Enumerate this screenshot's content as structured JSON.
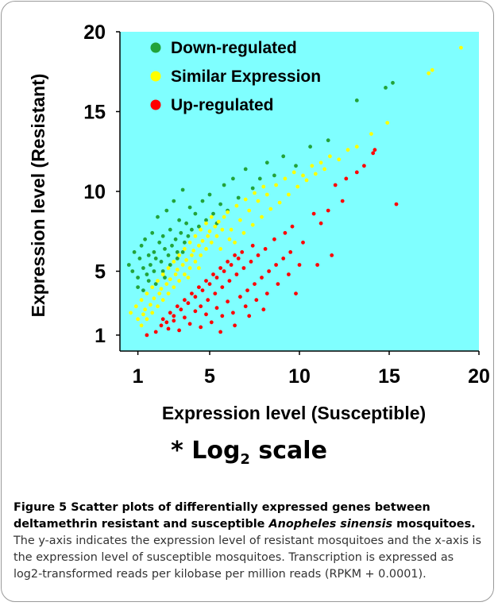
{
  "chart_data": {
    "type": "scatter",
    "title": "",
    "xlabel": "Expression level (Susceptible)",
    "ylabel": "Expression level (Resistant)",
    "xlim": [
      0,
      20
    ],
    "ylim": [
      0,
      20
    ],
    "x_ticks": [
      1,
      5,
      10,
      15,
      20
    ],
    "y_ticks": [
      1,
      5,
      10,
      15,
      20
    ],
    "background_color": "#7fffff",
    "grid": false,
    "legend_position": "top-left",
    "scale_note_prefix": "* Log",
    "scale_note_sub": "2",
    "scale_note_suffix": " scale",
    "series": [
      {
        "name": "Down-regulated",
        "color": "#22a33a",
        "points": [
          [
            0.5,
            5.4
          ],
          [
            0.7,
            5.0
          ],
          [
            0.8,
            6.2
          ],
          [
            1.0,
            4.6
          ],
          [
            1.1,
            5.8
          ],
          [
            1.2,
            6.6
          ],
          [
            1.3,
            5.2
          ],
          [
            1.4,
            7.0
          ],
          [
            1.5,
            4.8
          ],
          [
            1.6,
            6.0
          ],
          [
            1.7,
            5.4
          ],
          [
            1.8,
            7.4
          ],
          [
            1.9,
            6.2
          ],
          [
            2.0,
            5.8
          ],
          [
            2.1,
            8.4
          ],
          [
            2.2,
            6.8
          ],
          [
            2.3,
            5.6
          ],
          [
            2.4,
            7.2
          ],
          [
            2.5,
            6.4
          ],
          [
            2.6,
            8.8
          ],
          [
            2.7,
            6.0
          ],
          [
            2.8,
            7.6
          ],
          [
            2.9,
            6.6
          ],
          [
            3.0,
            9.4
          ],
          [
            3.1,
            7.0
          ],
          [
            3.2,
            6.2
          ],
          [
            3.3,
            8.2
          ],
          [
            3.4,
            7.4
          ],
          [
            3.5,
            10.1
          ],
          [
            3.6,
            6.8
          ],
          [
            3.7,
            8.0
          ],
          [
            3.8,
            7.2
          ],
          [
            3.9,
            9.0
          ],
          [
            4.0,
            7.6
          ],
          [
            4.2,
            8.6
          ],
          [
            4.4,
            7.8
          ],
          [
            4.6,
            9.4
          ],
          [
            4.8,
            8.2
          ],
          [
            5.0,
            9.8
          ],
          [
            5.2,
            8.6
          ],
          [
            5.4,
            8.0
          ],
          [
            5.6,
            9.2
          ],
          [
            5.8,
            10.4
          ],
          [
            6.0,
            8.8
          ],
          [
            6.3,
            10.8
          ],
          [
            6.6,
            9.6
          ],
          [
            7.0,
            11.4
          ],
          [
            7.4,
            10.2
          ],
          [
            7.8,
            10.8
          ],
          [
            8.2,
            11.8
          ],
          [
            8.6,
            11.0
          ],
          [
            9.1,
            12.2
          ],
          [
            9.8,
            11.6
          ],
          [
            10.6,
            12.8
          ],
          [
            11.6,
            13.2
          ],
          [
            13.2,
            15.7
          ],
          [
            14.8,
            16.5
          ],
          [
            15.2,
            16.8
          ],
          [
            1.3,
            3.8
          ],
          [
            1.6,
            4.4
          ],
          [
            2.0,
            4.2
          ],
          [
            2.4,
            5.0
          ],
          [
            2.8,
            5.4
          ],
          [
            3.2,
            5.8
          ],
          [
            1.0,
            4.0
          ],
          [
            1.9,
            5.0
          ],
          [
            2.5,
            4.6
          ],
          [
            3.5,
            6.2
          ]
        ]
      },
      {
        "name": "Similar Expression",
        "color": "#ffff00",
        "points": [
          [
            0.6,
            2.4
          ],
          [
            0.9,
            2.8
          ],
          [
            1.2,
            3.2
          ],
          [
            1.5,
            3.6
          ],
          [
            1.8,
            4.0
          ],
          [
            2.1,
            4.4
          ],
          [
            2.4,
            4.8
          ],
          [
            2.7,
            5.2
          ],
          [
            3.0,
            5.6
          ],
          [
            3.3,
            6.0
          ],
          [
            3.6,
            6.4
          ],
          [
            3.9,
            6.8
          ],
          [
            4.2,
            7.2
          ],
          [
            4.5,
            7.6
          ],
          [
            4.8,
            8.0
          ],
          [
            5.1,
            8.4
          ],
          [
            1.2,
            1.6
          ],
          [
            1.5,
            2.0
          ],
          [
            1.8,
            2.4
          ],
          [
            2.1,
            2.8
          ],
          [
            2.4,
            3.2
          ],
          [
            2.7,
            3.6
          ],
          [
            3.0,
            4.0
          ],
          [
            3.3,
            4.4
          ],
          [
            3.6,
            4.8
          ],
          [
            3.9,
            5.2
          ],
          [
            4.2,
            5.6
          ],
          [
            4.5,
            6.0
          ],
          [
            4.8,
            6.4
          ],
          [
            5.1,
            6.8
          ],
          [
            5.4,
            7.2
          ],
          [
            5.7,
            7.6
          ],
          [
            1.0,
            2.0
          ],
          [
            1.4,
            2.6
          ],
          [
            1.9,
            3.3
          ],
          [
            2.3,
            3.9
          ],
          [
            2.8,
            4.5
          ],
          [
            3.2,
            5.1
          ],
          [
            3.7,
            5.7
          ],
          [
            4.1,
            6.3
          ],
          [
            4.6,
            6.9
          ],
          [
            5.0,
            7.5
          ],
          [
            5.5,
            8.1
          ],
          [
            6.0,
            8.7
          ],
          [
            6.5,
            9.1
          ],
          [
            7.0,
            9.5
          ],
          [
            7.5,
            9.9
          ],
          [
            8.0,
            10.3
          ],
          [
            1.3,
            2.3
          ],
          [
            1.7,
            2.9
          ],
          [
            2.2,
            3.6
          ],
          [
            2.6,
            4.2
          ],
          [
            3.1,
            4.8
          ],
          [
            3.5,
            5.4
          ],
          [
            4.0,
            6.0
          ],
          [
            4.4,
            6.6
          ],
          [
            4.9,
            7.2
          ],
          [
            5.3,
            7.8
          ],
          [
            5.8,
            8.4
          ],
          [
            6.2,
            7.6
          ],
          [
            6.7,
            8.2
          ],
          [
            7.2,
            8.8
          ],
          [
            7.7,
            9.4
          ],
          [
            8.2,
            9.8
          ],
          [
            8.7,
            10.4
          ],
          [
            9.2,
            10.8
          ],
          [
            9.7,
            11.2
          ],
          [
            10.2,
            11.0
          ],
          [
            10.7,
            11.6
          ],
          [
            11.2,
            11.8
          ],
          [
            11.7,
            12.2
          ],
          [
            12.2,
            12.0
          ],
          [
            12.7,
            12.6
          ],
          [
            13.2,
            12.8
          ],
          [
            14.0,
            13.6
          ],
          [
            14.9,
            14.3
          ],
          [
            17.2,
            17.4
          ],
          [
            17.4,
            17.6
          ],
          [
            19.0,
            19.0
          ],
          [
            6.4,
            6.8
          ],
          [
            6.9,
            7.4
          ],
          [
            7.4,
            7.9
          ],
          [
            7.9,
            8.4
          ],
          [
            8.4,
            8.9
          ],
          [
            8.9,
            9.3
          ],
          [
            9.4,
            9.8
          ],
          [
            9.9,
            10.3
          ],
          [
            10.4,
            10.7
          ],
          [
            10.9,
            11.1
          ],
          [
            11.4,
            11.4
          ],
          [
            5.6,
            6.4
          ],
          [
            6.1,
            7.0
          ],
          [
            4.4,
            5.2
          ],
          [
            3.8,
            4.6
          ]
        ]
      },
      {
        "name": "Up-regulated",
        "color": "#ff0000",
        "points": [
          [
            1.5,
            1.0
          ],
          [
            2.0,
            1.2
          ],
          [
            2.3,
            1.6
          ],
          [
            2.7,
            1.4
          ],
          [
            3.0,
            1.9
          ],
          [
            3.3,
            1.3
          ],
          [
            3.6,
            2.1
          ],
          [
            3.9,
            1.7
          ],
          [
            4.2,
            2.5
          ],
          [
            4.5,
            1.5
          ],
          [
            4.8,
            2.3
          ],
          [
            5.1,
            1.8
          ],
          [
            5.4,
            2.7
          ],
          [
            5.7,
            2.2
          ],
          [
            6.0,
            3.1
          ],
          [
            6.3,
            2.4
          ],
          [
            2.4,
            2.0
          ],
          [
            2.8,
            2.4
          ],
          [
            3.2,
            2.8
          ],
          [
            3.6,
            3.2
          ],
          [
            4.0,
            3.6
          ],
          [
            4.4,
            4.0
          ],
          [
            4.8,
            4.4
          ],
          [
            5.2,
            4.8
          ],
          [
            5.6,
            5.2
          ],
          [
            6.0,
            5.6
          ],
          [
            6.4,
            6.0
          ],
          [
            2.6,
            1.8
          ],
          [
            3.0,
            2.2
          ],
          [
            3.4,
            2.6
          ],
          [
            3.8,
            3.0
          ],
          [
            4.2,
            3.4
          ],
          [
            4.6,
            3.8
          ],
          [
            5.0,
            4.2
          ],
          [
            5.4,
            4.6
          ],
          [
            5.8,
            5.0
          ],
          [
            6.2,
            5.4
          ],
          [
            6.6,
            5.8
          ],
          [
            4.5,
            2.8
          ],
          [
            4.9,
            3.2
          ],
          [
            5.3,
            3.6
          ],
          [
            5.7,
            4.0
          ],
          [
            6.1,
            4.4
          ],
          [
            6.5,
            4.8
          ],
          [
            6.9,
            5.2
          ],
          [
            7.3,
            5.6
          ],
          [
            7.7,
            6.0
          ],
          [
            8.1,
            6.4
          ],
          [
            6.7,
            3.4
          ],
          [
            7.1,
            3.8
          ],
          [
            7.5,
            4.2
          ],
          [
            7.9,
            4.6
          ],
          [
            8.3,
            5.0
          ],
          [
            8.7,
            5.4
          ],
          [
            9.1,
            5.8
          ],
          [
            9.5,
            6.2
          ],
          [
            7.0,
            2.8
          ],
          [
            7.6,
            3.2
          ],
          [
            8.2,
            3.6
          ],
          [
            8.8,
            4.2
          ],
          [
            9.4,
            4.8
          ],
          [
            10.0,
            5.4
          ],
          [
            8.6,
            7.0
          ],
          [
            9.2,
            7.4
          ],
          [
            9.6,
            7.8
          ],
          [
            10.2,
            6.8
          ],
          [
            10.8,
            8.6
          ],
          [
            11.2,
            8.0
          ],
          [
            11.6,
            8.8
          ],
          [
            11.0,
            5.4
          ],
          [
            11.8,
            6.0
          ],
          [
            12.4,
            9.4
          ],
          [
            12.0,
            10.4
          ],
          [
            12.6,
            10.8
          ],
          [
            13.2,
            11.2
          ],
          [
            13.6,
            11.6
          ],
          [
            14.1,
            12.4
          ],
          [
            14.2,
            12.6
          ],
          [
            15.4,
            9.2
          ],
          [
            5.6,
            1.2
          ],
          [
            6.4,
            1.6
          ],
          [
            7.2,
            2.2
          ],
          [
            8.0,
            2.6
          ],
          [
            9.8,
            3.6
          ],
          [
            6.8,
            6.2
          ],
          [
            7.4,
            6.6
          ]
        ]
      }
    ]
  },
  "caption": {
    "label": "Figure 5",
    "title_before_italic": " Scatter plots of differentially expressed genes between deltamethrin resistant and susceptible ",
    "title_italic": "Anopheles sinensis",
    "title_after_italic": " mosquitoes.",
    "body": " The y-axis indicates the expression level of resistant mosquitoes and the x-axis is the expression level of susceptible mosquitoes. Transcription is expressed as log2-transformed reads per kilobase per million reads (RPKM + 0.0001)."
  }
}
